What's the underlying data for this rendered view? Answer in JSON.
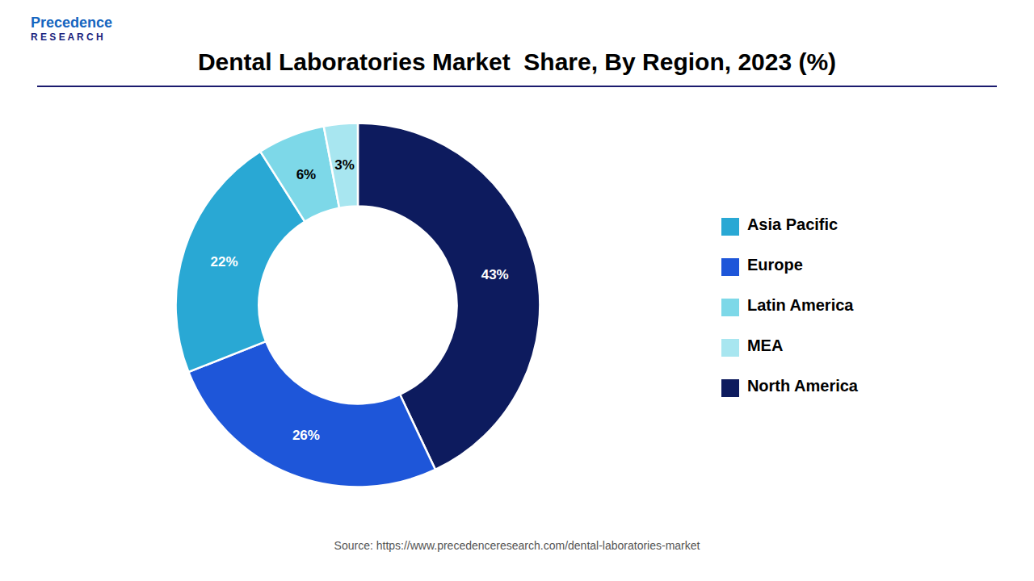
{
  "chart_data": {
    "type": "pie",
    "title": "Dental Laboratories Market  Share, By Region, 2023 (%)",
    "categories": [
      "North America",
      "Europe",
      "Asia Pacific",
      "Latin America",
      "MEA"
    ],
    "values": [
      43,
      26,
      22,
      6,
      3
    ],
    "value_labels": [
      "43%",
      "26%",
      "22%",
      "6%",
      "3%"
    ],
    "colors": [
      "#0d1b5e",
      "#1e56d9",
      "#29a8d4",
      "#7dd8e8",
      "#a8e6f0"
    ],
    "data_labels": true,
    "legend": "right",
    "annotations": [
      "Precedence",
      "R E S E A R C H",
      "Source: https://www.precedenceresearch.com/dental-laboratories-market"
    ]
  }
}
